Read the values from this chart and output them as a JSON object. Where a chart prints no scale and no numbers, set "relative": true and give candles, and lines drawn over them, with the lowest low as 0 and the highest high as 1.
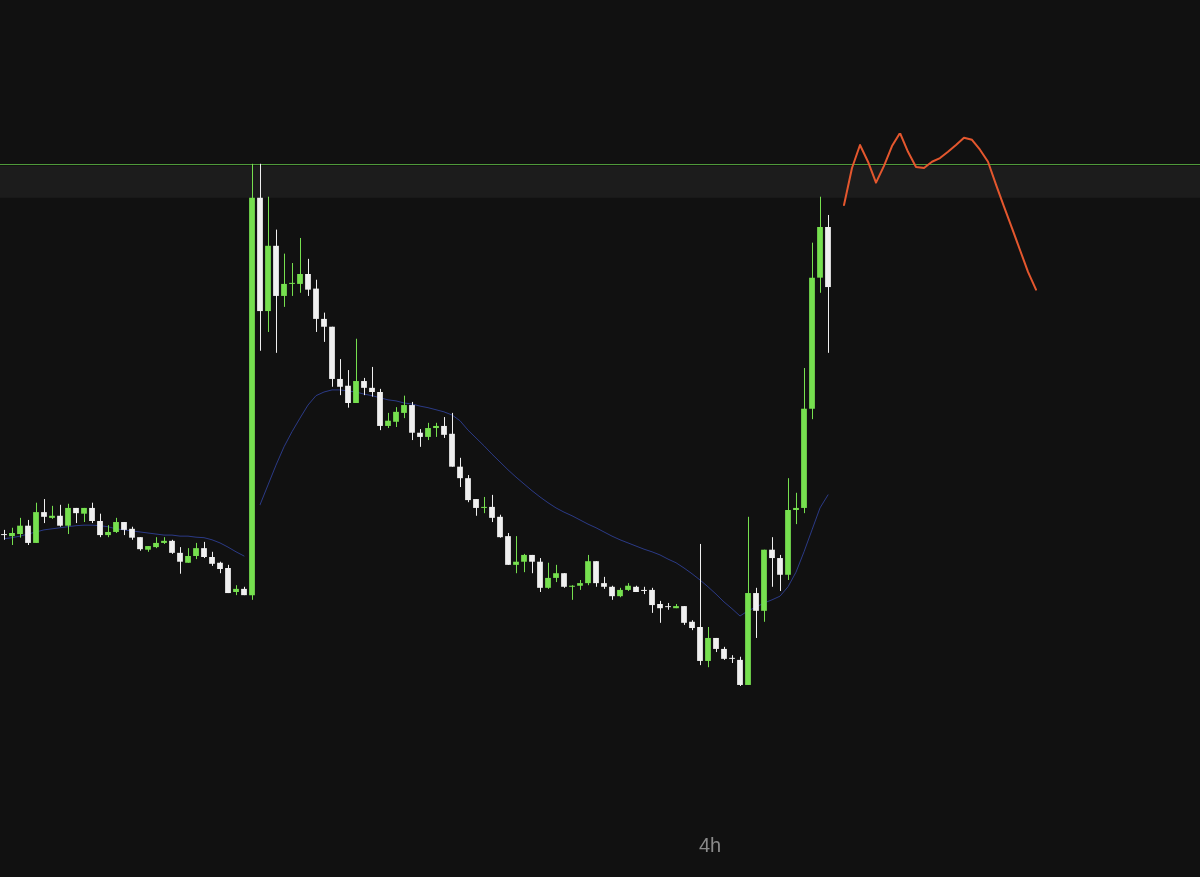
{
  "chart_data": {
    "type": "candlestick",
    "title": "4h",
    "relative": true,
    "legend": false,
    "grid": false,
    "marker": "none",
    "line_style": "solid",
    "categories": [
      null,
      null,
      null,
      null,
      null,
      null,
      null,
      null,
      null,
      null,
      null,
      null,
      null,
      null,
      null,
      null,
      null,
      null,
      null,
      null,
      null,
      null,
      null,
      null,
      null,
      null,
      null,
      null,
      null,
      null,
      null,
      null,
      null,
      null,
      null,
      null,
      null,
      null,
      null,
      null,
      null,
      null,
      null,
      null,
      null,
      null,
      null,
      null,
      null,
      null,
      null,
      null,
      null,
      null,
      null,
      null,
      null,
      null,
      null,
      null,
      null,
      null,
      null,
      null,
      null,
      null,
      null,
      null,
      null,
      null,
      null,
      null,
      null,
      null,
      null,
      null,
      null,
      null,
      null,
      null,
      null,
      null,
      null,
      null,
      null,
      null,
      null,
      null,
      null,
      null,
      null,
      null,
      null,
      null,
      null,
      null,
      null,
      null,
      null,
      null,
      null,
      null,
      null,
      null,
      null,
      null,
      null,
      null,
      null,
      null,
      null,
      null,
      null,
      null,
      null,
      null,
      null,
      null,
      null,
      null,
      null,
      null,
      null,
      null,
      null,
      null,
      null,
      null,
      null,
      null,
      null,
      null,
      null,
      null,
      null,
      null,
      null,
      null,
      null,
      null,
      null,
      null,
      null,
      null,
      null,
      null,
      null,
      null,
      null,
      null
    ],
    "ohlc": [
      [
        0.289,
        0.299,
        0.28,
        0.289
      ],
      [
        0.287,
        0.303,
        0.27,
        0.293
      ],
      [
        0.291,
        0.322,
        0.284,
        0.307
      ],
      [
        0.307,
        0.318,
        0.27,
        0.274
      ],
      [
        0.274,
        0.351,
        0.274,
        0.333
      ],
      [
        0.333,
        0.358,
        0.312,
        0.324
      ],
      [
        0.322,
        0.345,
        0.32,
        0.326
      ],
      [
        0.326,
        0.347,
        0.305,
        0.307
      ],
      [
        0.307,
        0.349,
        0.291,
        0.341
      ],
      [
        0.341,
        0.341,
        0.312,
        0.331
      ],
      [
        0.33,
        0.341,
        0.314,
        0.341
      ],
      [
        0.341,
        0.351,
        0.312,
        0.316
      ],
      [
        0.316,
        0.33,
        0.285,
        0.289
      ],
      [
        0.289,
        0.308,
        0.285,
        0.295
      ],
      [
        0.295,
        0.322,
        0.293,
        0.314
      ],
      [
        0.314,
        0.314,
        0.289,
        0.299
      ],
      [
        0.301,
        0.305,
        0.28,
        0.284
      ],
      [
        0.285,
        0.285,
        0.259,
        0.262
      ],
      [
        0.261,
        0.268,
        0.257,
        0.268
      ],
      [
        0.266,
        0.285,
        0.264,
        0.274
      ],
      [
        0.274,
        0.285,
        0.272,
        0.278
      ],
      [
        0.278,
        0.28,
        0.253,
        0.255
      ],
      [
        0.255,
        0.266,
        0.215,
        0.238
      ],
      [
        0.236,
        0.264,
        0.236,
        0.249
      ],
      [
        0.249,
        0.274,
        0.243,
        0.264
      ],
      [
        0.264,
        0.276,
        0.245,
        0.247
      ],
      [
        0.247,
        0.257,
        0.23,
        0.234
      ],
      [
        0.236,
        0.238,
        0.216,
        0.224
      ],
      [
        0.226,
        0.232,
        0.178,
        0.178
      ],
      [
        0.18,
        0.193,
        0.174,
        0.186
      ],
      [
        0.186,
        0.19,
        0.174,
        0.174
      ],
      [
        0.174,
        1,
        0.165,
        0.935
      ],
      [
        0.935,
        1,
        0.642,
        0.718
      ],
      [
        0.718,
        0.937,
        0.678,
        0.843
      ],
      [
        0.843,
        0.874,
        0.638,
        0.747
      ],
      [
        0.747,
        0.828,
        0.726,
        0.77
      ],
      [
        0.77,
        0.81,
        0.747,
        0.772
      ],
      [
        0.77,
        0.858,
        0.753,
        0.789
      ],
      [
        0.789,
        0.818,
        0.747,
        0.759
      ],
      [
        0.761,
        0.778,
        0.678,
        0.703
      ],
      [
        0.703,
        0.715,
        0.659,
        0.688
      ],
      [
        0.688,
        0.688,
        0.573,
        0.588
      ],
      [
        0.588,
        0.626,
        0.557,
        0.573
      ],
      [
        0.575,
        0.605,
        0.533,
        0.542
      ],
      [
        0.542,
        0.665,
        0.542,
        0.584
      ],
      [
        0.584,
        0.59,
        0.557,
        0.571
      ],
      [
        0.571,
        0.611,
        0.554,
        0.563
      ],
      [
        0.563,
        0.569,
        0.49,
        0.498
      ],
      [
        0.498,
        0.523,
        0.494,
        0.508
      ],
      [
        0.506,
        0.534,
        0.496,
        0.525
      ],
      [
        0.523,
        0.556,
        0.513,
        0.538
      ],
      [
        0.538,
        0.544,
        0.471,
        0.485
      ],
      [
        0.485,
        0.492,
        0.458,
        0.477
      ],
      [
        0.477,
        0.504,
        0.471,
        0.494
      ],
      [
        0.494,
        0.504,
        0.477,
        0.498
      ],
      [
        0.498,
        0.515,
        0.475,
        0.481
      ],
      [
        0.483,
        0.523,
        0.42,
        0.42
      ],
      [
        0.42,
        0.437,
        0.381,
        0.398
      ],
      [
        0.398,
        0.404,
        0.352,
        0.356
      ],
      [
        0.358,
        0.358,
        0.326,
        0.341
      ],
      [
        0.341,
        0.362,
        0.331,
        0.343
      ],
      [
        0.343,
        0.366,
        0.314,
        0.322
      ],
      [
        0.324,
        0.328,
        0.284,
        0.285
      ],
      [
        0.287,
        0.293,
        0.232,
        0.232
      ],
      [
        0.232,
        0.287,
        0.216,
        0.238
      ],
      [
        0.238,
        0.253,
        0.218,
        0.251
      ],
      [
        0.251,
        0.251,
        0.216,
        0.238
      ],
      [
        0.238,
        0.245,
        0.18,
        0.188
      ],
      [
        0.188,
        0.236,
        0.186,
        0.207
      ],
      [
        0.207,
        0.232,
        0.199,
        0.216
      ],
      [
        0.216,
        0.216,
        0.188,
        0.19
      ],
      [
        0.19,
        0.193,
        0.165,
        0.192
      ],
      [
        0.192,
        0.203,
        0.184,
        0.197
      ],
      [
        0.197,
        0.251,
        0.193,
        0.239
      ],
      [
        0.239,
        0.239,
        0.19,
        0.197
      ],
      [
        0.197,
        0.209,
        0.186,
        0.19
      ],
      [
        0.19,
        0.192,
        0.165,
        0.172
      ],
      [
        0.172,
        0.188,
        0.17,
        0.184
      ],
      [
        0.184,
        0.197,
        0.182,
        0.192
      ],
      [
        0.19,
        0.192,
        0.18,
        0.18
      ],
      [
        0.184,
        0.19,
        0.176,
        0.182
      ],
      [
        0.184,
        0.188,
        0.14,
        0.155
      ],
      [
        0.157,
        0.163,
        0.121,
        0.149
      ],
      [
        0.151,
        0.159,
        0.146,
        0.151
      ],
      [
        0.149,
        0.157,
        0.149,
        0.153
      ],
      [
        0.153,
        0.153,
        0.117,
        0.121
      ],
      [
        0.123,
        0.126,
        0.107,
        0.111
      ],
      [
        0.113,
        0.272,
        0.04,
        0.048
      ],
      [
        0.048,
        0.113,
        0.036,
        0.092
      ],
      [
        0.092,
        0.092,
        0.065,
        0.071
      ],
      [
        0.071,
        0.075,
        0.05,
        0.052
      ],
      [
        0.052,
        0.059,
        0.044,
        0.052
      ],
      [
        0.05,
        0.056,
        0,
        0.002
      ],
      [
        0.002,
        0.324,
        0.002,
        0.178
      ],
      [
        0.178,
        0.188,
        0.092,
        0.144
      ],
      [
        0.144,
        0.261,
        0.123,
        0.261
      ],
      [
        0.261,
        0.285,
        0.19,
        0.245
      ],
      [
        0.245,
        0.251,
        0.182,
        0.213
      ],
      [
        0.213,
        0.398,
        0.203,
        0.337
      ],
      [
        0.337,
        0.37,
        0.31,
        0.341
      ],
      [
        0.341,
        0.609,
        0.331,
        0.531
      ],
      [
        0.531,
        0.849,
        0.511,
        0.782
      ],
      [
        0.782,
        0.937,
        0.753,
        0.879
      ],
      [
        0.879,
        0.902,
        0.638,
        0.764
      ],
      null,
      null,
      null,
      null,
      null,
      null,
      null,
      null,
      null,
      null,
      null,
      null,
      null,
      null,
      null,
      null,
      null,
      null,
      null,
      null,
      null,
      null,
      null,
      null,
      null,
      null,
      null,
      null,
      null,
      null,
      null,
      null,
      null,
      null,
      null,
      null,
      null,
      null,
      null,
      null,
      null,
      null,
      null,
      null,
      null,
      null
    ],
    "colors": [
      "#f0f0f0",
      "#76e04f",
      "#76e04f",
      "#f0f0f0",
      "#76e04f",
      "#f0f0f0",
      "#76e04f",
      "#f0f0f0",
      "#76e04f",
      "#f0f0f0",
      "#76e04f",
      "#f0f0f0",
      "#f0f0f0",
      "#76e04f",
      "#76e04f",
      "#f0f0f0",
      "#f0f0f0",
      "#f0f0f0",
      "#76e04f",
      "#76e04f",
      "#76e04f",
      "#f0f0f0",
      "#f0f0f0",
      "#76e04f",
      "#76e04f",
      "#f0f0f0",
      "#f0f0f0",
      "#f0f0f0",
      "#f0f0f0",
      "#76e04f",
      "#f0f0f0",
      "#76e04f",
      "#f0f0f0",
      "#76e04f",
      "#f0f0f0",
      "#76e04f",
      "#76e04f",
      "#76e04f",
      "#f0f0f0",
      "#f0f0f0",
      "#f0f0f0",
      "#f0f0f0",
      "#f0f0f0",
      "#f0f0f0",
      "#76e04f",
      "#f0f0f0",
      "#f0f0f0",
      "#f0f0f0",
      "#76e04f",
      "#76e04f",
      "#76e04f",
      "#f0f0f0",
      "#f0f0f0",
      "#76e04f",
      "#76e04f",
      "#f0f0f0",
      "#f0f0f0",
      "#f0f0f0",
      "#f0f0f0",
      "#f0f0f0",
      "#76e04f",
      "#f0f0f0",
      "#f0f0f0",
      "#f0f0f0",
      "#76e04f",
      "#76e04f",
      "#f0f0f0",
      "#f0f0f0",
      "#76e04f",
      "#76e04f",
      "#f0f0f0",
      "#76e04f",
      "#76e04f",
      "#76e04f",
      "#f0f0f0",
      "#f0f0f0",
      "#f0f0f0",
      "#76e04f",
      "#76e04f",
      "#f0f0f0",
      "#f0f0f0",
      "#f0f0f0",
      "#f0f0f0",
      "#f0f0f0",
      "#76e04f",
      "#f0f0f0",
      "#f0f0f0",
      "#f0f0f0",
      "#76e04f",
      "#f0f0f0",
      "#f0f0f0",
      "#f0f0f0",
      "#f0f0f0",
      "#76e04f",
      "#f0f0f0",
      "#76e04f",
      "#f0f0f0",
      "#f0f0f0",
      "#76e04f",
      "#76e04f",
      "#76e04f",
      "#76e04f",
      "#76e04f",
      "#f0f0f0",
      null,
      null,
      null,
      null,
      null,
      null,
      null,
      null,
      null,
      null,
      null,
      null,
      null,
      null,
      null,
      null,
      null,
      null,
      null,
      null,
      null,
      null,
      null,
      null,
      null,
      null,
      null,
      null,
      null,
      null,
      null,
      null,
      null,
      null,
      null,
      null,
      null,
      null,
      null,
      null,
      null,
      null,
      null,
      null,
      null,
      null
    ],
    "series": [
      {
        "type": "line",
        "color": "#2b3a86",
        "values": [
          0.282,
          0.284,
          0.287,
          0.291,
          0.295,
          0.299,
          0.301,
          0.303,
          0.305,
          0.307,
          0.308,
          0.308,
          0.307,
          0.305,
          0.301,
          0.299,
          0.297,
          0.295,
          0.293,
          0.291,
          0.289,
          0.289,
          0.287,
          0.287,
          0.285,
          0.284,
          0.28,
          0.274,
          0.266,
          0.257,
          0.249,
          null,
          0.347,
          0.385,
          0.423,
          0.458,
          0.487,
          0.513,
          0.538,
          0.556,
          0.563,
          0.567,
          0.567,
          0.565,
          0.563,
          0.559,
          0.556,
          0.552,
          0.548,
          0.546,
          0.542,
          0.54,
          0.536,
          0.533,
          0.529,
          0.525,
          0.519,
          0.508,
          0.49,
          0.475,
          0.46,
          0.444,
          0.429,
          0.414,
          0.4,
          0.387,
          0.374,
          0.362,
          0.351,
          0.341,
          0.333,
          0.326,
          0.318,
          0.31,
          0.303,
          0.295,
          0.287,
          0.28,
          0.274,
          0.268,
          0.262,
          0.257,
          0.251,
          0.243,
          0.236,
          0.226,
          0.215,
          0.203,
          0.19,
          0.176,
          0.161,
          0.148,
          0.134,
          0.144,
          0.151,
          0.159,
          0.165,
          0.172,
          0.19,
          0.218,
          0.257,
          0.299,
          0.341,
          0.366,
          null,
          null,
          null,
          null,
          null,
          null,
          null,
          null,
          null,
          null,
          null,
          null,
          null,
          null,
          null,
          null,
          null,
          null,
          null,
          null,
          null,
          null,
          null,
          null,
          null,
          null,
          null,
          null,
          null,
          null,
          null,
          null,
          null,
          null,
          null,
          null,
          null,
          null,
          null,
          null,
          null,
          null,
          null,
          null,
          null,
          null
        ]
      },
      {
        "type": "line",
        "color": "#e4572e",
        "values": [
          null,
          null,
          null,
          null,
          null,
          null,
          null,
          null,
          null,
          null,
          null,
          null,
          null,
          null,
          null,
          null,
          null,
          null,
          null,
          null,
          null,
          null,
          null,
          null,
          null,
          null,
          null,
          null,
          null,
          null,
          null,
          null,
          null,
          null,
          null,
          null,
          null,
          null,
          null,
          null,
          null,
          null,
          null,
          null,
          null,
          null,
          null,
          null,
          null,
          null,
          null,
          null,
          null,
          null,
          null,
          null,
          null,
          null,
          null,
          null,
          null,
          null,
          null,
          null,
          null,
          null,
          null,
          null,
          null,
          null,
          null,
          null,
          null,
          null,
          null,
          null,
          null,
          null,
          null,
          null,
          null,
          null,
          null,
          null,
          null,
          null,
          null,
          null,
          null,
          null,
          null,
          null,
          null,
          null,
          null,
          null,
          null,
          null,
          null,
          null,
          null,
          null,
          null,
          null,
          null,
          0.921,
          0.992,
          1.036,
          1.004,
          0.964,
          0.996,
          1.034,
          1.059,
          1.023,
          0.994,
          0.992,
          1.004,
          1.011,
          1.023,
          1.036,
          1.05,
          1.046,
          1.027,
          1.004,
          0.96,
          0.918,
          0.877,
          0.835,
          0.793,
          0.759,
          null,
          null,
          null,
          null,
          null,
          null,
          null,
          null,
          null,
          null,
          null,
          null,
          null,
          null,
          null,
          null,
          null,
          null,
          null,
          null
        ]
      }
    ],
    "ref_lines": [
      {
        "axis": "y",
        "value": 1,
        "color": "#4f9a3a"
      }
    ],
    "bands": [
      {
        "axis": "y",
        "from": 0.935,
        "to": 0.996,
        "color": "#1c1c1c"
      }
    ]
  }
}
